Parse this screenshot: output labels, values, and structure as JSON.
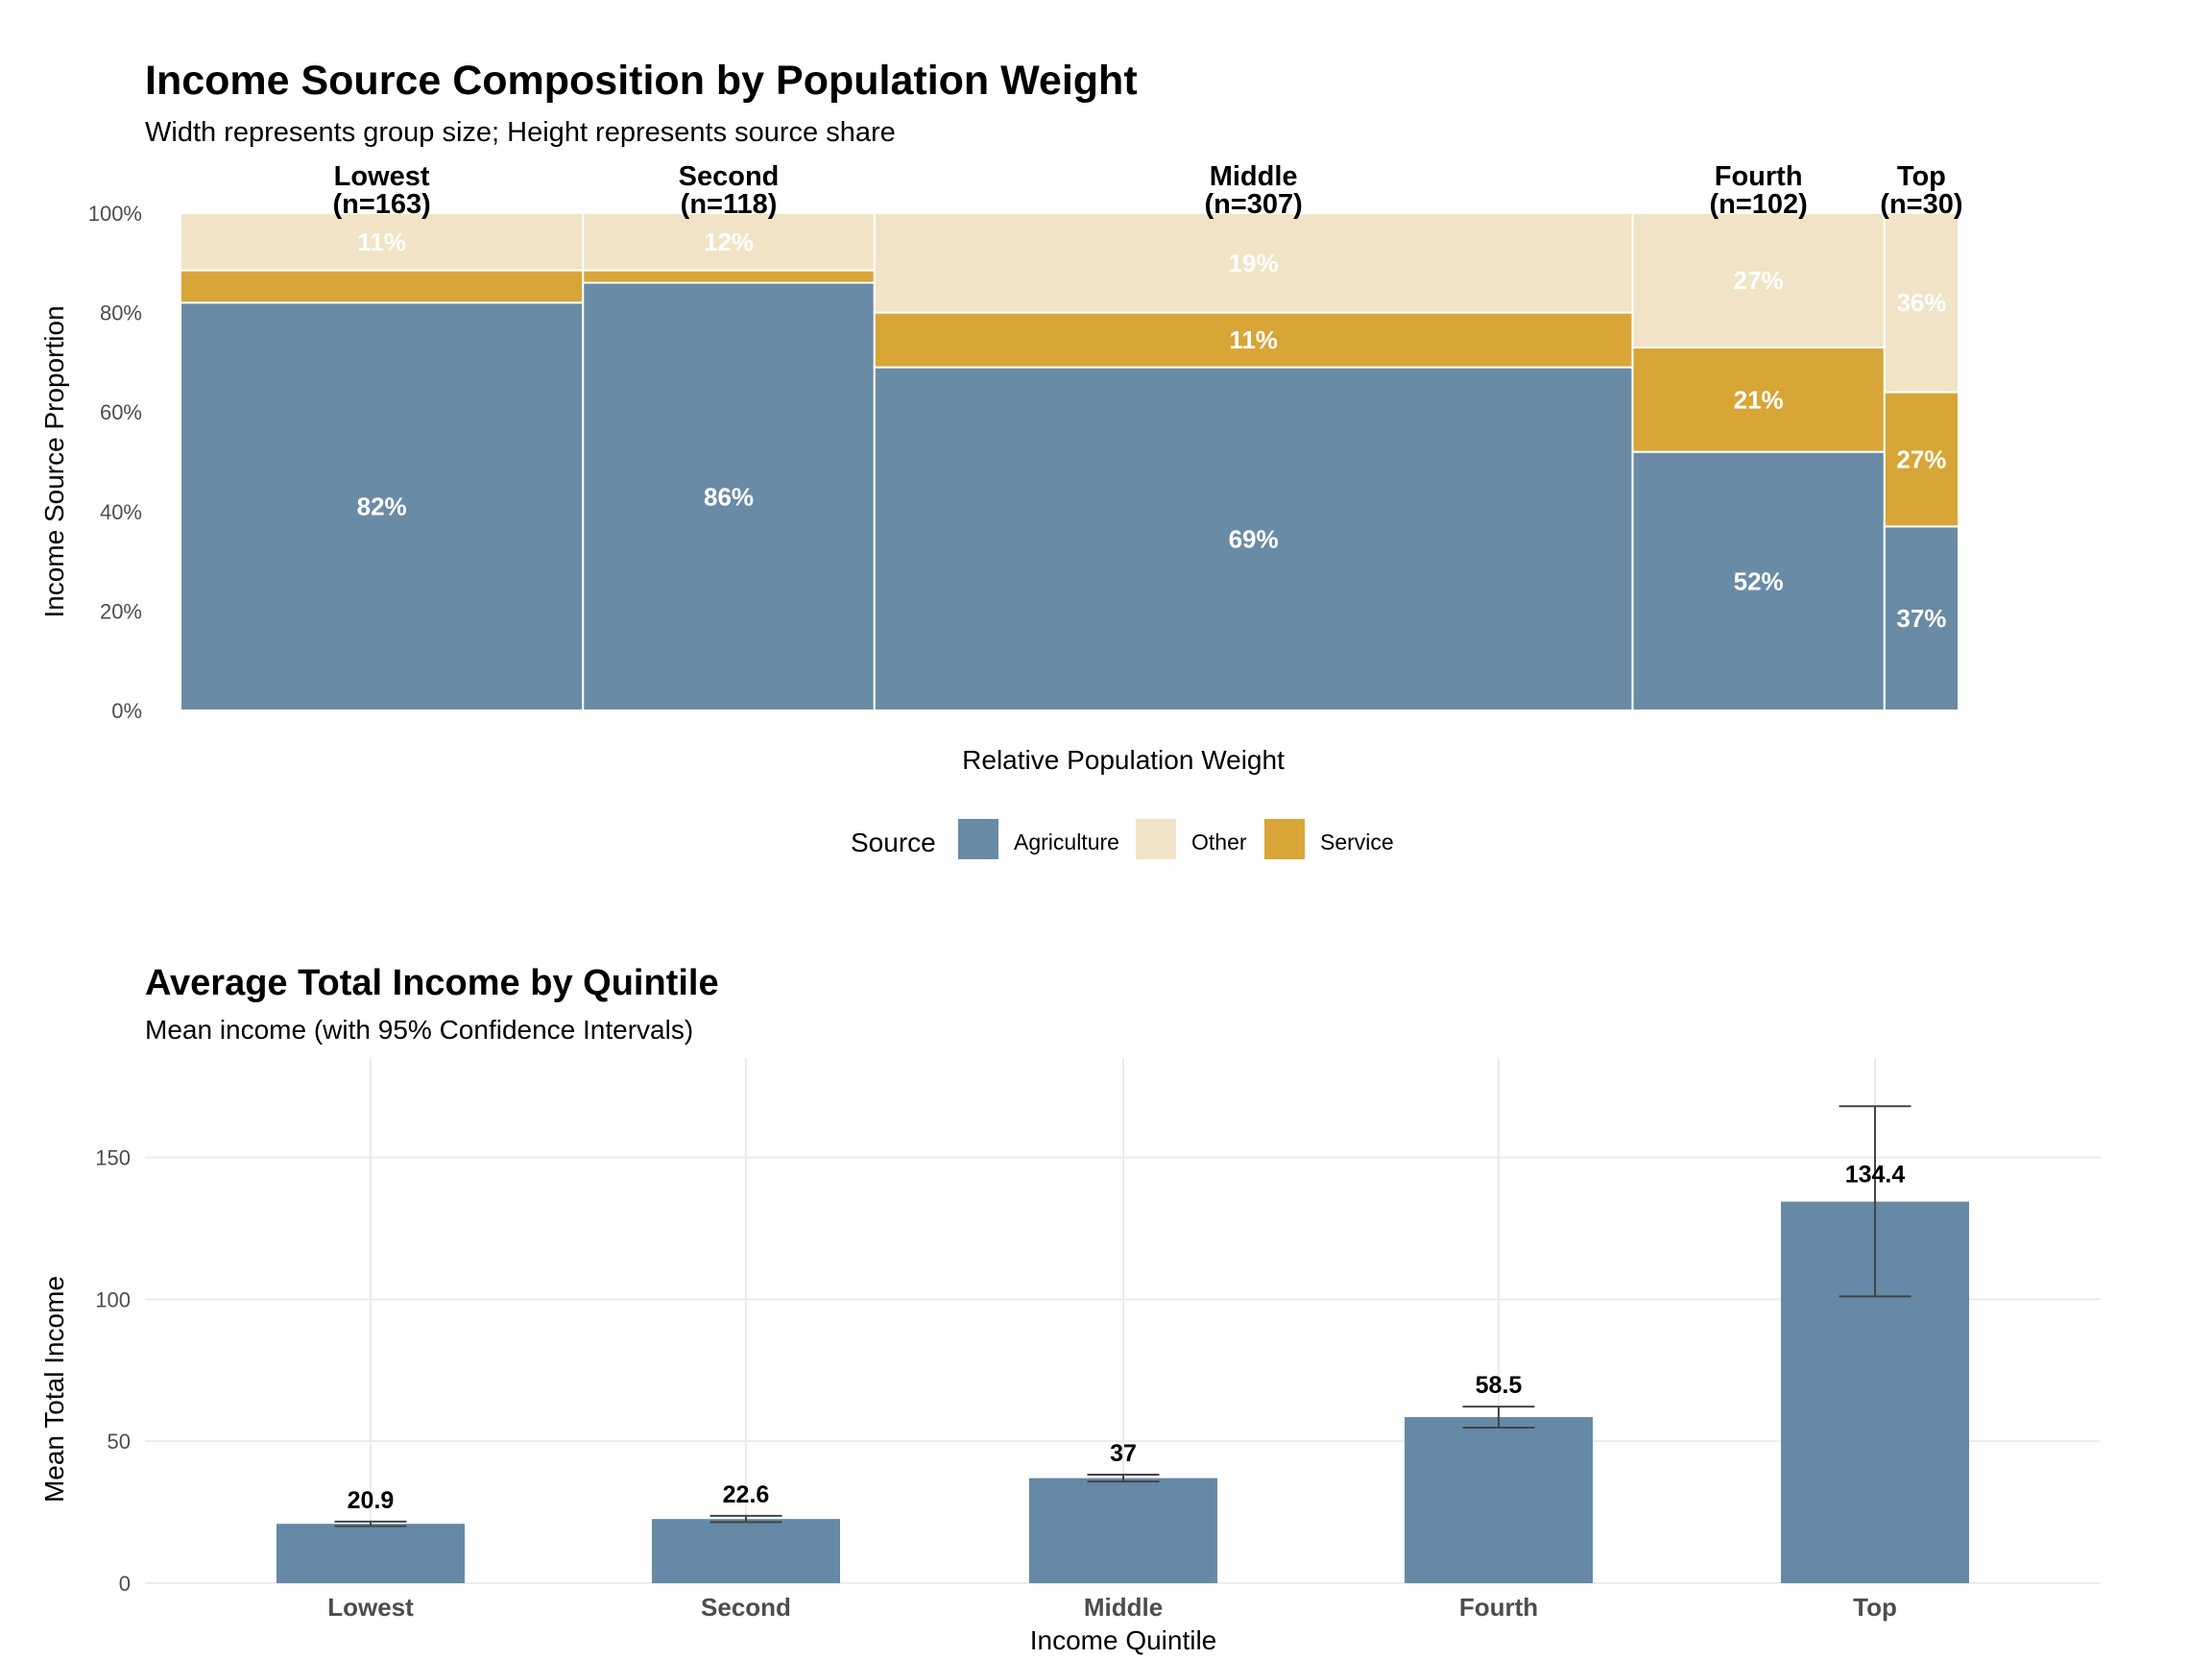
{
  "chart_data": [
    {
      "type": "bar",
      "subtype": "mosaic (stacked, variable-width)",
      "title": "Income Source Composition by Population Weight",
      "subtitle": "Width represents group size; Height represents source share",
      "xlabel": "Relative Population Weight",
      "ylabel": "Income Source Proportion",
      "ylim": [
        0,
        1
      ],
      "yticks": [
        "0%",
        "20%",
        "40%",
        "60%",
        "80%",
        "100%"
      ],
      "categories": [
        "Lowest",
        "Second",
        "Middle",
        "Fourth",
        "Top"
      ],
      "category_labels": [
        "(n=163)",
        "(n=118)",
        "(n=307)",
        "(n=102)",
        "(n=30)"
      ],
      "n": [
        163,
        118,
        307,
        102,
        30
      ],
      "series": [
        {
          "name": "Agriculture",
          "color": "#6A8BA5",
          "values": [
            0.82,
            0.86,
            0.69,
            0.52,
            0.37
          ],
          "labels": [
            "82%",
            "86%",
            "69%",
            "52%",
            "37%"
          ]
        },
        {
          "name": "Service",
          "color": "#D8A537",
          "values": [
            0.065,
            0.025,
            0.11,
            0.21,
            0.27
          ],
          "labels": [
            "",
            "",
            "11%",
            "21%",
            "27%"
          ]
        },
        {
          "name": "Other",
          "color": "#F1E3C5",
          "values": [
            0.11,
            0.12,
            0.19,
            0.27,
            0.36
          ],
          "labels": [
            "11%",
            "12%",
            "19%",
            "27%",
            "36%"
          ]
        }
      ],
      "legend": {
        "title": "Source",
        "placement": "bottom",
        "items": [
          "Agriculture",
          "Other",
          "Service"
        ]
      },
      "grid": false
    },
    {
      "type": "bar",
      "title": "Average Total Income by Quintile",
      "subtitle": "Mean income (with 95% Confidence Intervals)",
      "xlabel": "Income Quintile",
      "ylabel": "Mean Total Income",
      "ylim": [
        0,
        185
      ],
      "yticks": [
        0,
        50,
        100,
        150
      ],
      "categories": [
        "Lowest",
        "Second",
        "Middle",
        "Fourth",
        "Top"
      ],
      "values": [
        20.9,
        22.6,
        37,
        58.5,
        134.4
      ],
      "value_labels": [
        "20.9",
        "22.6",
        "37",
        "58.5",
        "134.4"
      ],
      "ci_lower": [
        20.1,
        21.5,
        35.8,
        54.8,
        101
      ],
      "ci_upper": [
        21.7,
        23.7,
        38.2,
        62.2,
        168
      ],
      "bar_color": "#6589A6",
      "grid": true
    }
  ]
}
